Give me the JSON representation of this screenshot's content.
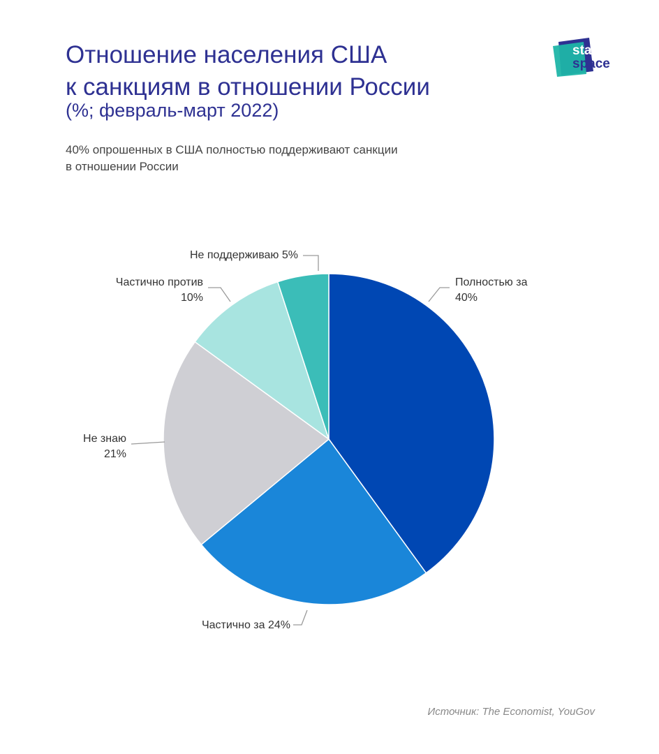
{
  "header": {
    "title_line1": "Отношение населения США",
    "title_line2": "к санкциям в отношении России",
    "subtitle": "(%; февраль-март 2022)",
    "description_line1": "40% опрошенных в США полностью поддерживают санкции",
    "description_line2": "в отношении России"
  },
  "logo": {
    "line1": "stat",
    "line2": "space"
  },
  "source": "Источник: The Economist, YouGov",
  "colors": {
    "title": "#2e3192",
    "slice_full_for": "#0047b3",
    "slice_partly_for": "#1a86d9",
    "slice_dont_know": "#cfcfd4",
    "slice_partly_against": "#a8e4e0",
    "slice_not_support": "#3bbdb8"
  },
  "chart_data": {
    "type": "pie",
    "title": "Отношение населения США к санкциям в отношении России",
    "unit": "%",
    "start": "12 o'clock, clockwise",
    "slices": [
      {
        "key": "full_for",
        "value": 40,
        "label_line1": "Полностью за",
        "label_line2": "40%"
      },
      {
        "key": "partly_for",
        "value": 24,
        "label_line1": "Частично за 24%",
        "label_line2": ""
      },
      {
        "key": "dont_know",
        "value": 21,
        "label_line1": "Не знаю",
        "label_line2": "21%"
      },
      {
        "key": "partly_against",
        "value": 10,
        "label_line1": "Частично против",
        "label_line2": "10%"
      },
      {
        "key": "not_support",
        "value": 5,
        "label_line1": "Не поддерживаю 5%",
        "label_line2": ""
      }
    ]
  }
}
